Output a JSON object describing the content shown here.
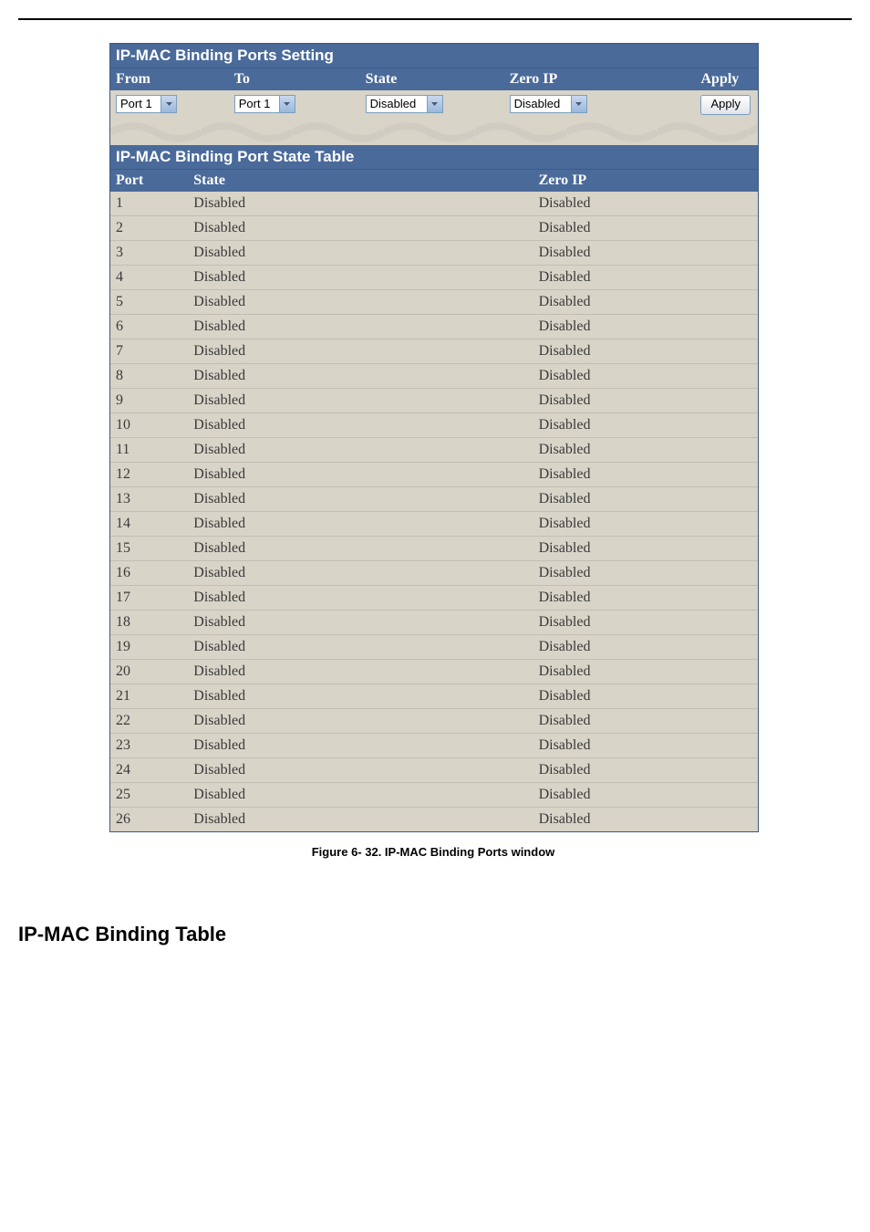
{
  "settingPanel": {
    "title": "IP-MAC Binding Ports Setting",
    "headers": {
      "from": "From",
      "to": "To",
      "state": "State",
      "zeroip": "Zero IP",
      "apply": "Apply"
    },
    "inputs": {
      "from": "Port 1",
      "to": "Port 1",
      "state": "Disabled",
      "zeroip": "Disabled",
      "applyBtn": "Apply"
    },
    "widths": {
      "fromSelect": 40,
      "toSelect": 40,
      "stateSelect": 58,
      "zeroipSelect": 58
    }
  },
  "stateTable": {
    "title": "IP-MAC Binding Port State Table",
    "headers": {
      "port": "Port",
      "state": "State",
      "zeroip": "Zero IP"
    },
    "rows": [
      {
        "port": "1",
        "state": "Disabled",
        "zeroip": "Disabled"
      },
      {
        "port": "2",
        "state": "Disabled",
        "zeroip": "Disabled"
      },
      {
        "port": "3",
        "state": "Disabled",
        "zeroip": "Disabled"
      },
      {
        "port": "4",
        "state": "Disabled",
        "zeroip": "Disabled"
      },
      {
        "port": "5",
        "state": "Disabled",
        "zeroip": "Disabled"
      },
      {
        "port": "6",
        "state": "Disabled",
        "zeroip": "Disabled"
      },
      {
        "port": "7",
        "state": "Disabled",
        "zeroip": "Disabled"
      },
      {
        "port": "8",
        "state": "Disabled",
        "zeroip": "Disabled"
      },
      {
        "port": "9",
        "state": "Disabled",
        "zeroip": "Disabled"
      },
      {
        "port": "10",
        "state": "Disabled",
        "zeroip": "Disabled"
      },
      {
        "port": "11",
        "state": "Disabled",
        "zeroip": "Disabled"
      },
      {
        "port": "12",
        "state": "Disabled",
        "zeroip": "Disabled"
      },
      {
        "port": "13",
        "state": "Disabled",
        "zeroip": "Disabled"
      },
      {
        "port": "14",
        "state": "Disabled",
        "zeroip": "Disabled"
      },
      {
        "port": "15",
        "state": "Disabled",
        "zeroip": "Disabled"
      },
      {
        "port": "16",
        "state": "Disabled",
        "zeroip": "Disabled"
      },
      {
        "port": "17",
        "state": "Disabled",
        "zeroip": "Disabled"
      },
      {
        "port": "18",
        "state": "Disabled",
        "zeroip": "Disabled"
      },
      {
        "port": "19",
        "state": "Disabled",
        "zeroip": "Disabled"
      },
      {
        "port": "20",
        "state": "Disabled",
        "zeroip": "Disabled"
      },
      {
        "port": "21",
        "state": "Disabled",
        "zeroip": "Disabled"
      },
      {
        "port": "22",
        "state": "Disabled",
        "zeroip": "Disabled"
      },
      {
        "port": "23",
        "state": "Disabled",
        "zeroip": "Disabled"
      },
      {
        "port": "24",
        "state": "Disabled",
        "zeroip": "Disabled"
      },
      {
        "port": "25",
        "state": "Disabled",
        "zeroip": "Disabled"
      },
      {
        "port": "26",
        "state": "Disabled",
        "zeroip": "Disabled"
      }
    ]
  },
  "caption": "Figure 6- 32. IP-MAC Binding Ports window",
  "sectionHeading": "IP-MAC Binding Table",
  "colors": {
    "headerBg": "#4a6a9a",
    "headerText": "#ffffff",
    "bodyBg": "#d8d4c8",
    "rowBorder": "#c2beb2",
    "panelBorder": "#3a5a8a",
    "headerTextBlue": "#ffffff"
  }
}
